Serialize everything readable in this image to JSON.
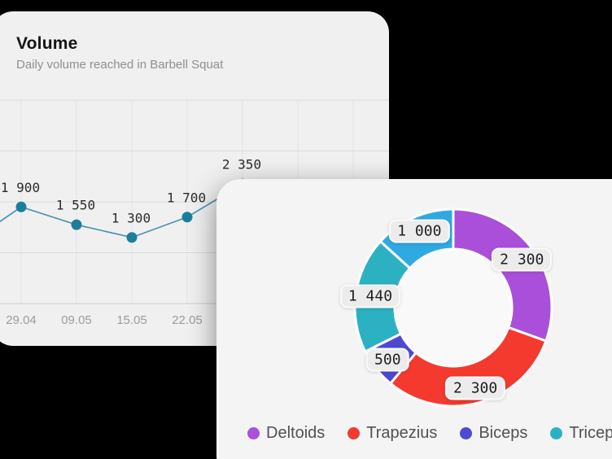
{
  "page": {
    "background": "#000000"
  },
  "volume_card": {
    "title": "Volume",
    "subtitle": "Daily volume reached in Barbell Squat"
  },
  "chart_data": [
    {
      "type": "line",
      "title": "Volume",
      "subtitle": "Daily volume reached in Barbell Squat",
      "x_tick_labels": [
        "29.04",
        "09.05",
        "15.05",
        "22.05"
      ],
      "points": [
        {
          "x_label": "29.04",
          "value": 1900,
          "label": "1 900"
        },
        {
          "x_label": "09.05",
          "value": 1550,
          "label": "1 550"
        },
        {
          "x_label": "15.05",
          "value": 1300,
          "label": "1 300"
        },
        {
          "x_label": "22.05",
          "value": 1700,
          "label": "1 700"
        },
        {
          "x_label": "",
          "value": 2350,
          "label": "2 350"
        }
      ],
      "lead_in_value": 1150,
      "ylim": [
        0,
        4000
      ],
      "y_gridlines": [
        1000,
        2000,
        3000,
        4000
      ],
      "grid": true,
      "legend_position": "none",
      "line_color": "#4e94ac",
      "point_color": "#1d7e9c",
      "grid_color_h": "#dcdcde",
      "grid_color_v": "#e4e4e6",
      "axis_color": "#d2d2d4"
    },
    {
      "type": "pie",
      "donut": true,
      "title": "",
      "legend_position": "bottom",
      "segments": [
        {
          "name": "Deltoids",
          "value": 2300,
          "label": "2 300",
          "color": "#a94fd9"
        },
        {
          "name": "Trapezius",
          "value": 2300,
          "label": "2 300",
          "color": "#f4392e"
        },
        {
          "name": "Biceps",
          "value": 500,
          "label": "500",
          "color": "#4f49d0"
        },
        {
          "name": "Triceps",
          "value": 1440,
          "label": "1 440",
          "color": "#2cb1c3"
        },
        {
          "name": "",
          "value": 1000,
          "label": "1 000",
          "color": "#2fa9e2"
        }
      ],
      "legend": [
        "Deltoids",
        "Trapezius",
        "Biceps",
        "Triceps"
      ],
      "hole_color": "#f9f9fa",
      "separator_color": "#ffffff"
    }
  ]
}
